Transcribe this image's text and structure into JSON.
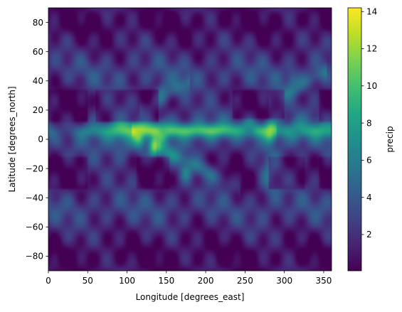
{
  "chart_data": {
    "type": "heatmap",
    "title": "",
    "xlabel": "Longitude [degrees_east]",
    "ylabel": "Latitude [degrees_north]",
    "colorbar_label": "precip",
    "colormap": "viridis",
    "xlim": [
      0,
      360
    ],
    "ylim": [
      -90,
      90
    ],
    "x_ticks": [
      0,
      50,
      100,
      150,
      200,
      250,
      300,
      350
    ],
    "x_tick_labels": [
      "0",
      "50",
      "100",
      "150",
      "200",
      "250",
      "300",
      "350"
    ],
    "y_ticks": [
      -80,
      -60,
      -40,
      -20,
      0,
      20,
      40,
      60,
      80
    ],
    "y_tick_labels": [
      "−80",
      "−60",
      "−40",
      "−20",
      "0",
      "20",
      "40",
      "60",
      "80"
    ],
    "color_range": [
      0.05,
      14.2
    ],
    "colorbar_ticks": [
      2,
      4,
      6,
      8,
      10,
      12,
      14
    ],
    "colorbar_tick_labels": [
      "2",
      "4",
      "6",
      "8",
      "10",
      "12",
      "14"
    ],
    "features": [
      {
        "lon": 115,
        "lat": 2,
        "value": 11.5
      },
      {
        "lon": 135,
        "lat": -5,
        "value": 12.5
      },
      {
        "lon": 282,
        "lat": 5,
        "value": 13.5
      },
      {
        "lon": 145,
        "lat": 4,
        "value": 9
      },
      {
        "lon": 255,
        "lat": 8,
        "value": 7.5
      },
      {
        "lon": 315,
        "lat": 5,
        "value": 7
      },
      {
        "lon": 15,
        "lat": 3,
        "value": 5.5
      },
      {
        "lon": 145,
        "lat": 32,
        "value": 6
      },
      {
        "lon": 310,
        "lat": 40,
        "value": 6
      },
      {
        "lon": 175,
        "lat": -22,
        "value": 6
      },
      {
        "lon": 20,
        "lat": 15,
        "value": 0.3
      },
      {
        "lon": 245,
        "lat": -20,
        "value": 0.5
      },
      {
        "lon": 180,
        "lat": -86,
        "value": 0.3
      }
    ],
    "colors": {
      "viridis_low": "#440154",
      "viridis_mid": "#21918c",
      "viridis_high": "#fde725"
    }
  }
}
